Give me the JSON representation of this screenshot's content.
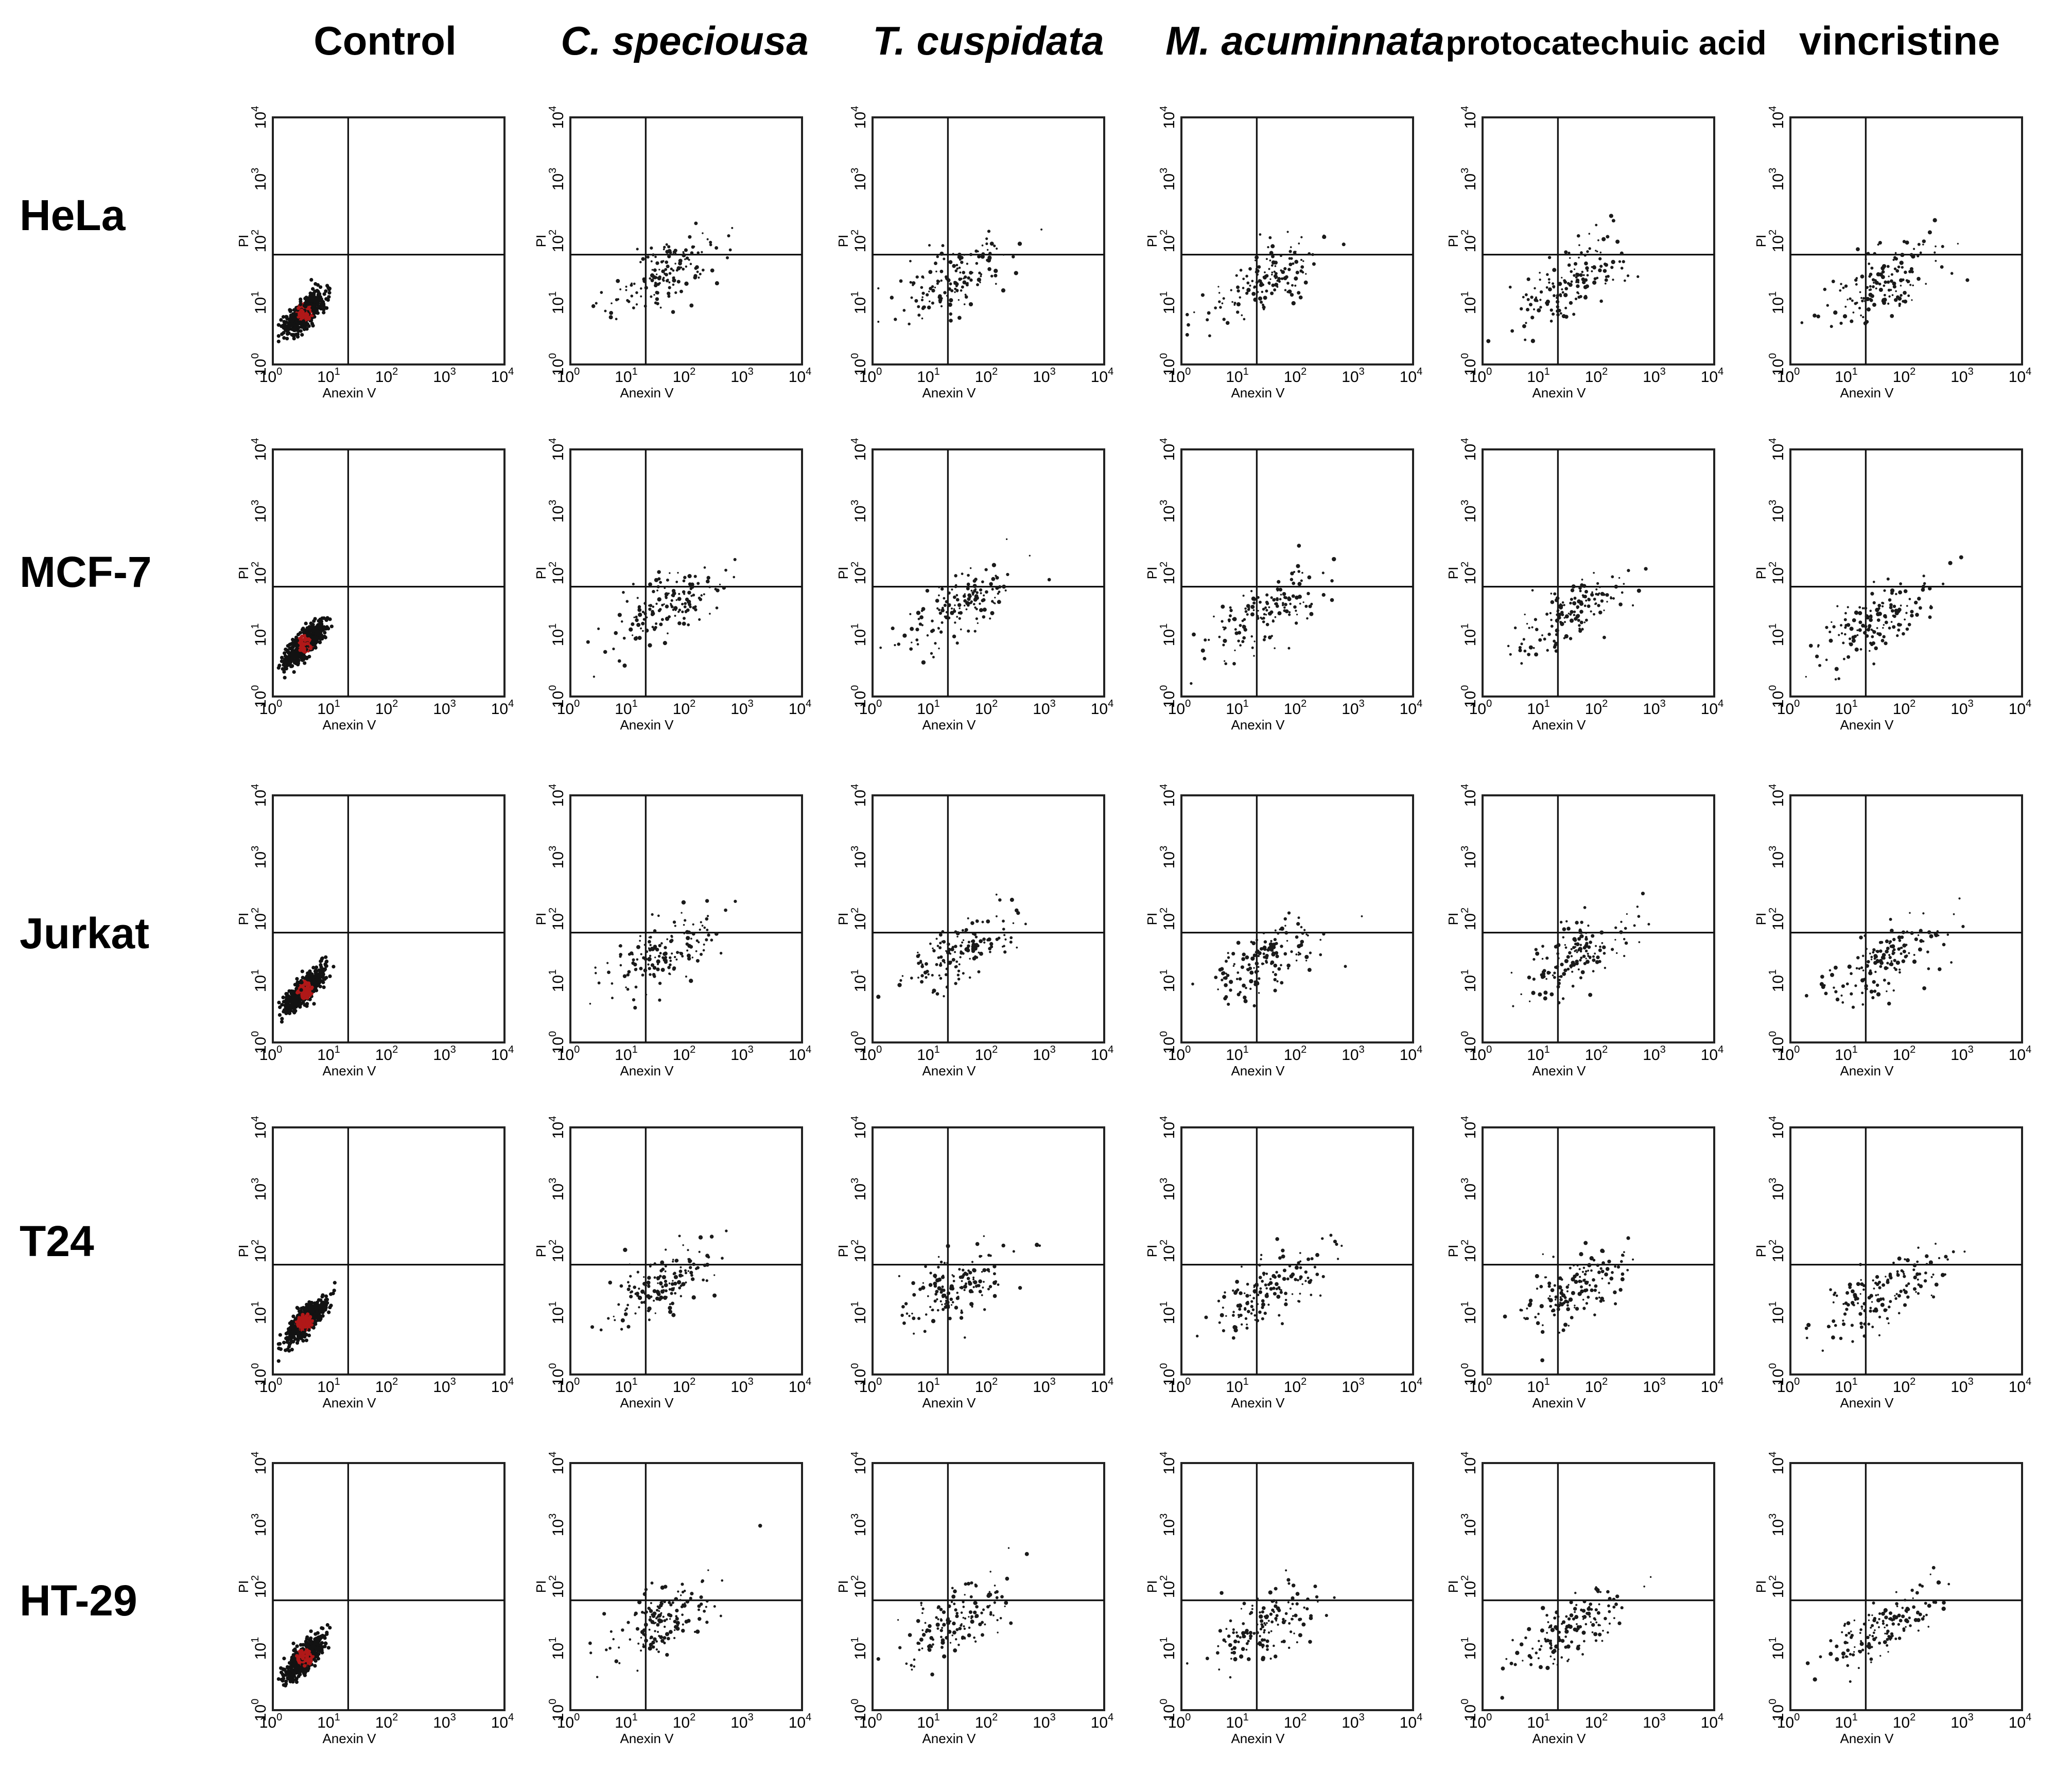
{
  "figure": {
    "columns": [
      "Control",
      "C. speciousa",
      "T. cuspidata",
      "M. acuminnata",
      "protocatechuic acid",
      "vincristine"
    ],
    "rows": [
      "HeLa",
      "MCF-7",
      "Jurkat",
      "T24",
      "HT-29"
    ]
  },
  "chart_data": {
    "type": "scatter",
    "layout": "grid of 5 rows x 6 columns of quadrant dot plots",
    "xlabel": "Anexin V",
    "ylabel": "PI",
    "x_scale": "log",
    "y_scale": "log",
    "xlim": [
      1,
      10000
    ],
    "ylim": [
      1,
      10000
    ],
    "x_ticks": [
      "10^0",
      "10^1",
      "10^2",
      "10^3",
      "10^4"
    ],
    "y_ticks": [
      "10^0",
      "10^1",
      "10^2",
      "10^3",
      "10^4"
    ],
    "quadrant_gate": {
      "x": 20,
      "y": 60
    },
    "population_centers_log10": {
      "Control": {
        "x": 0.55,
        "y": 0.85
      },
      "C. speciousa": {
        "x": 1.6,
        "y": 1.45
      },
      "T. cuspidata": {
        "x": 1.5,
        "y": 1.45
      },
      "M. acuminnata": {
        "x": 1.45,
        "y": 1.35
      },
      "protocatechuic acid": {
        "x": 1.55,
        "y": 1.35
      },
      "vincristine": {
        "x": 1.6,
        "y": 1.3
      }
    },
    "colors": {
      "dots": "#1a1a1a",
      "control_core": "#b01818"
    }
  }
}
